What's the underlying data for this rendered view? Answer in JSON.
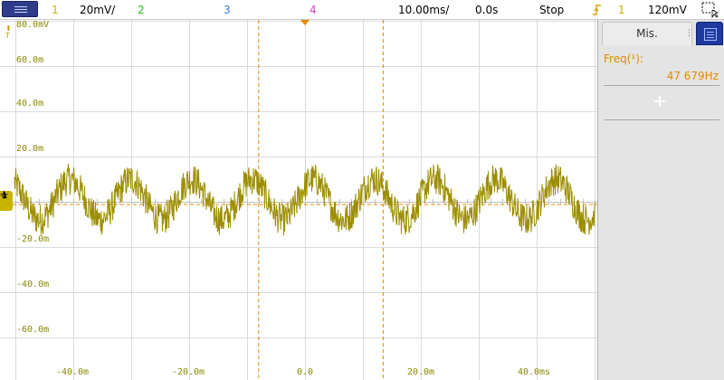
{
  "topbar": {
    "ch1_number": "1",
    "ch1_scale": "20mV/",
    "ch2_number": "2",
    "ch3_number": "3",
    "ch4_number": "4",
    "time_scale": "10.00ms/",
    "time_delay": "0.0s",
    "run_state": "Stop",
    "trigger_channel": "1",
    "trigger_level": "120mV"
  },
  "colors": {
    "ch1": "#c8b400",
    "ch2": "#22c022",
    "ch3": "#3a7ed8",
    "ch4": "#e040c0",
    "cursor": "#e08a00",
    "grid": "#dadada"
  },
  "plot": {
    "y_labels": [
      "80.0mV",
      "60.0m",
      "40.0m",
      "20.0m",
      "-20.0m",
      "-40.0m",
      "-60.0m"
    ],
    "x_labels": [
      "-40.0m",
      "-20.0m",
      "0.0",
      "20.0m",
      "40.0ms"
    ],
    "ch1_marker": "1",
    "trigger_marker": "T"
  },
  "panel": {
    "tab_label": "Mis.",
    "freq_label": "Freq(¹):",
    "freq_value": "47 679Hz"
  },
  "waveform": {
    "units_y": "mV",
    "units_x": "ms",
    "description": "noisy sine wave on channel 1",
    "amplitude_mv": 9,
    "noise_mv": 7,
    "period_ms": 10.5,
    "cursor_x1_ms": -8,
    "cursor_x2_ms": 13.5,
    "cursor_y_mv": 0
  },
  "icons": {
    "menu": "menu-icon",
    "trigger": "trigger-edge-icon",
    "zoom": "zoom-select-icon",
    "add": "plus-icon",
    "ground": "ground-icon"
  }
}
